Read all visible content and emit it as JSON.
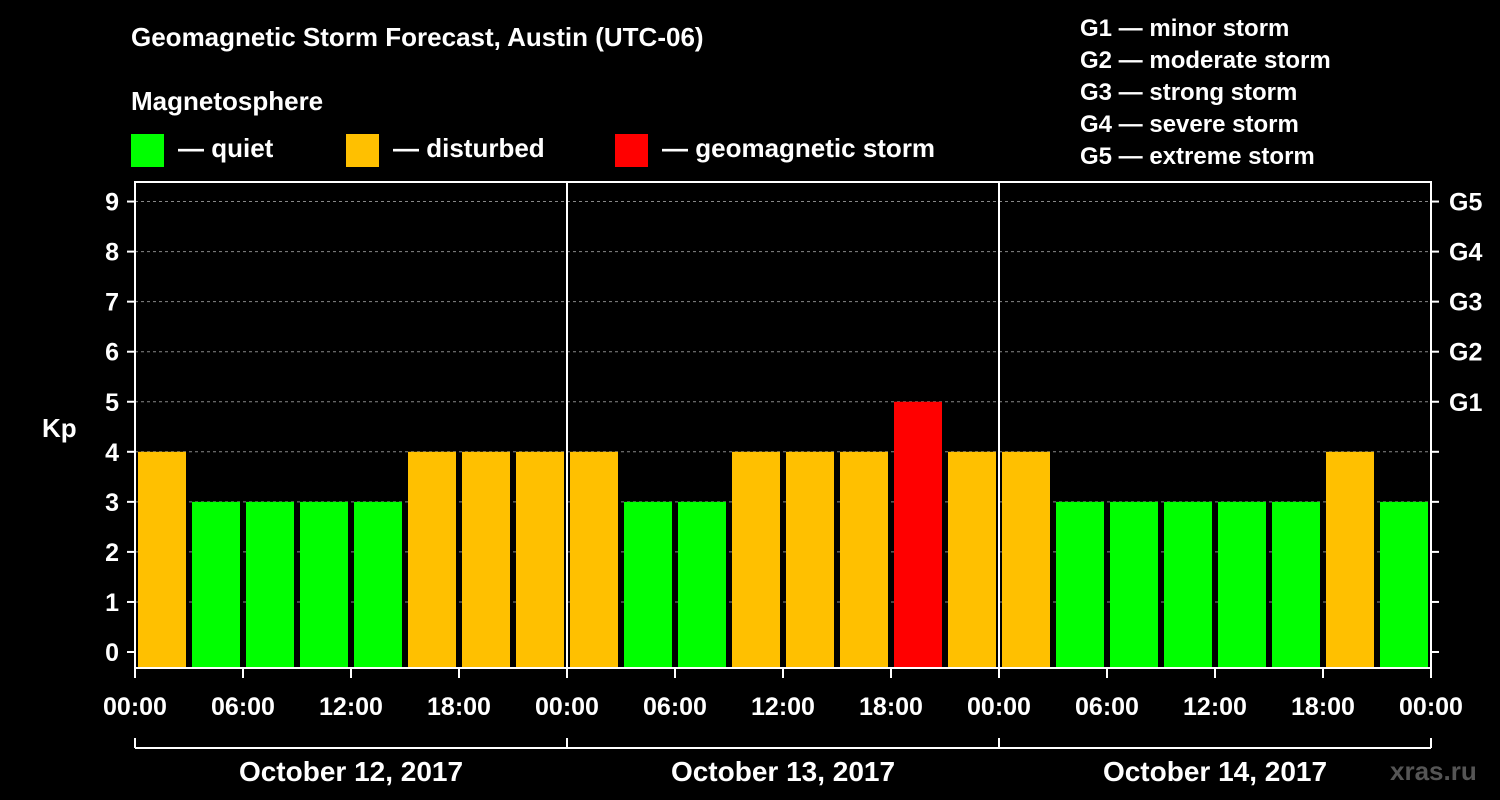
{
  "header": {
    "title": "Geomagnetic Storm Forecast, Austin (UTC-06)",
    "subtitle": "Magnetosphere"
  },
  "legend": [
    {
      "label": "— quiet",
      "color": "#00ff00"
    },
    {
      "label": "— disturbed",
      "color": "#ffc000"
    },
    {
      "label": "— geomagnetic storm",
      "color": "#ff0000"
    }
  ],
  "storm_scale": [
    "G1 — minor storm",
    "G2 — moderate storm",
    "G3 — strong storm",
    "G4 — severe storm",
    "G5 — extreme storm"
  ],
  "watermark": "xras.ru",
  "chart_data": {
    "type": "bar",
    "title": "Geomagnetic Storm Forecast, Austin (UTC-06)",
    "ylabel": "Kp",
    "ylim": [
      0,
      9
    ],
    "y_ticks": [
      "0",
      "1",
      "2",
      "3",
      "4",
      "5",
      "6",
      "7",
      "8",
      "9"
    ],
    "right_axis_labels": [
      {
        "kp": 5,
        "label": "G1"
      },
      {
        "kp": 6,
        "label": "G2"
      },
      {
        "kp": 7,
        "label": "G3"
      },
      {
        "kp": 8,
        "label": "G4"
      },
      {
        "kp": 9,
        "label": "G5"
      }
    ],
    "x_tick_labels": [
      "00:00",
      "06:00",
      "12:00",
      "18:00",
      "00:00",
      "06:00",
      "12:00",
      "18:00",
      "00:00",
      "06:00",
      "12:00",
      "18:00",
      "00:00"
    ],
    "days": [
      "October 12, 2017",
      "October 13, 2017",
      "October 14, 2017"
    ],
    "bar_hours": 3,
    "values": [
      4,
      3,
      3,
      3,
      3,
      4,
      4,
      4,
      4,
      3,
      3,
      4,
      4,
      4,
      5,
      4,
      4,
      3,
      3,
      3,
      3,
      3,
      4,
      3
    ],
    "colors": {
      "quiet": "#00ff00",
      "disturbed": "#ffc000",
      "storm": "#ff0000"
    },
    "grid": true
  }
}
